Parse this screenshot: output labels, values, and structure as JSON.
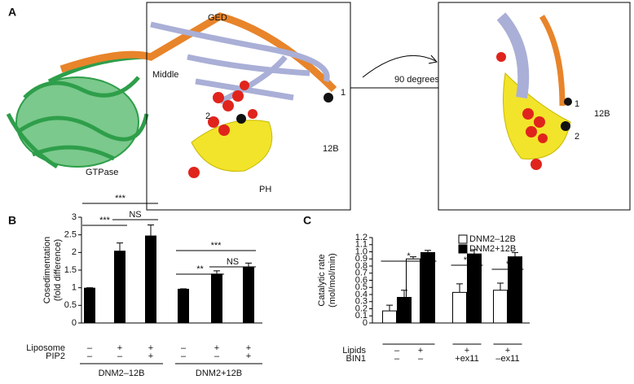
{
  "panel_a": {
    "letter": "A",
    "labels": {
      "ged": "GED",
      "middle": "Middle",
      "gtpase": "GTPase",
      "ph": "PH",
      "site1": "1",
      "site2": "2",
      "isoform": "12B",
      "rotation": "90 degrees",
      "rot_site1": "1",
      "rot_site2": "2",
      "rot_isoform": "12B"
    }
  },
  "chart_data": [
    {
      "type": "bar",
      "panel_label": "B",
      "y_label": [
        "Cosedimentation",
        "(fold difference)"
      ],
      "values": [
        1.0,
        2.05,
        2.48,
        0.97,
        1.4,
        1.6
      ],
      "errors": [
        0,
        0.22,
        0.3,
        0,
        0.08,
        0.1
      ],
      "color": "#000000",
      "ylim": [
        0,
        3
      ],
      "yticks": [
        0,
        0.5,
        1,
        1.5,
        2,
        2.5,
        3
      ],
      "condition_rows": [
        {
          "label": "Liposome",
          "values": [
            "–",
            "+",
            "+",
            "–",
            "+",
            "+"
          ]
        },
        {
          "label": "PIP2",
          "values": [
            "–",
            "–",
            "+",
            "–",
            "–",
            "+"
          ]
        }
      ],
      "groups": [
        "DNM2–12B",
        "DNM2+12B"
      ],
      "annotations": [
        "***",
        "***",
        "NS",
        "***",
        "**",
        "NS"
      ]
    },
    {
      "type": "grouped_bar",
      "panel_label": "C",
      "y_label": [
        "Catalytic rate",
        "(mol/mol/min)"
      ],
      "series": [
        {
          "name": "DNM2–12B",
          "color": "#ffffff",
          "values": [
            0.17,
            0.9,
            0.43,
            0.46
          ],
          "errors": [
            0.08,
            0.03,
            0.12,
            0.1
          ]
        },
        {
          "name": "DNM2+12B",
          "color": "#000000",
          "values": [
            0.36,
            0.99,
            0.97,
            0.93
          ],
          "errors": [
            0.1,
            0.03,
            0.06,
            0.06
          ]
        }
      ],
      "ylim": [
        0,
        1.2
      ],
      "yticks": [
        0,
        0.1,
        0.2,
        0.3,
        0.4,
        0.5,
        0.6,
        0.7,
        0.8,
        0.9,
        {
          "value": 1,
          "label": "1.0"
        },
        1.1,
        1.2
      ],
      "condition_rows": [
        {
          "label": "Lipids",
          "values": [
            "–",
            "+",
            "+",
            "+"
          ]
        },
        {
          "label": "BIN1",
          "values": [
            "–",
            "–",
            "+ex11",
            "–ex11"
          ]
        }
      ],
      "annotations": [
        "*",
        "**",
        "*"
      ]
    }
  ]
}
